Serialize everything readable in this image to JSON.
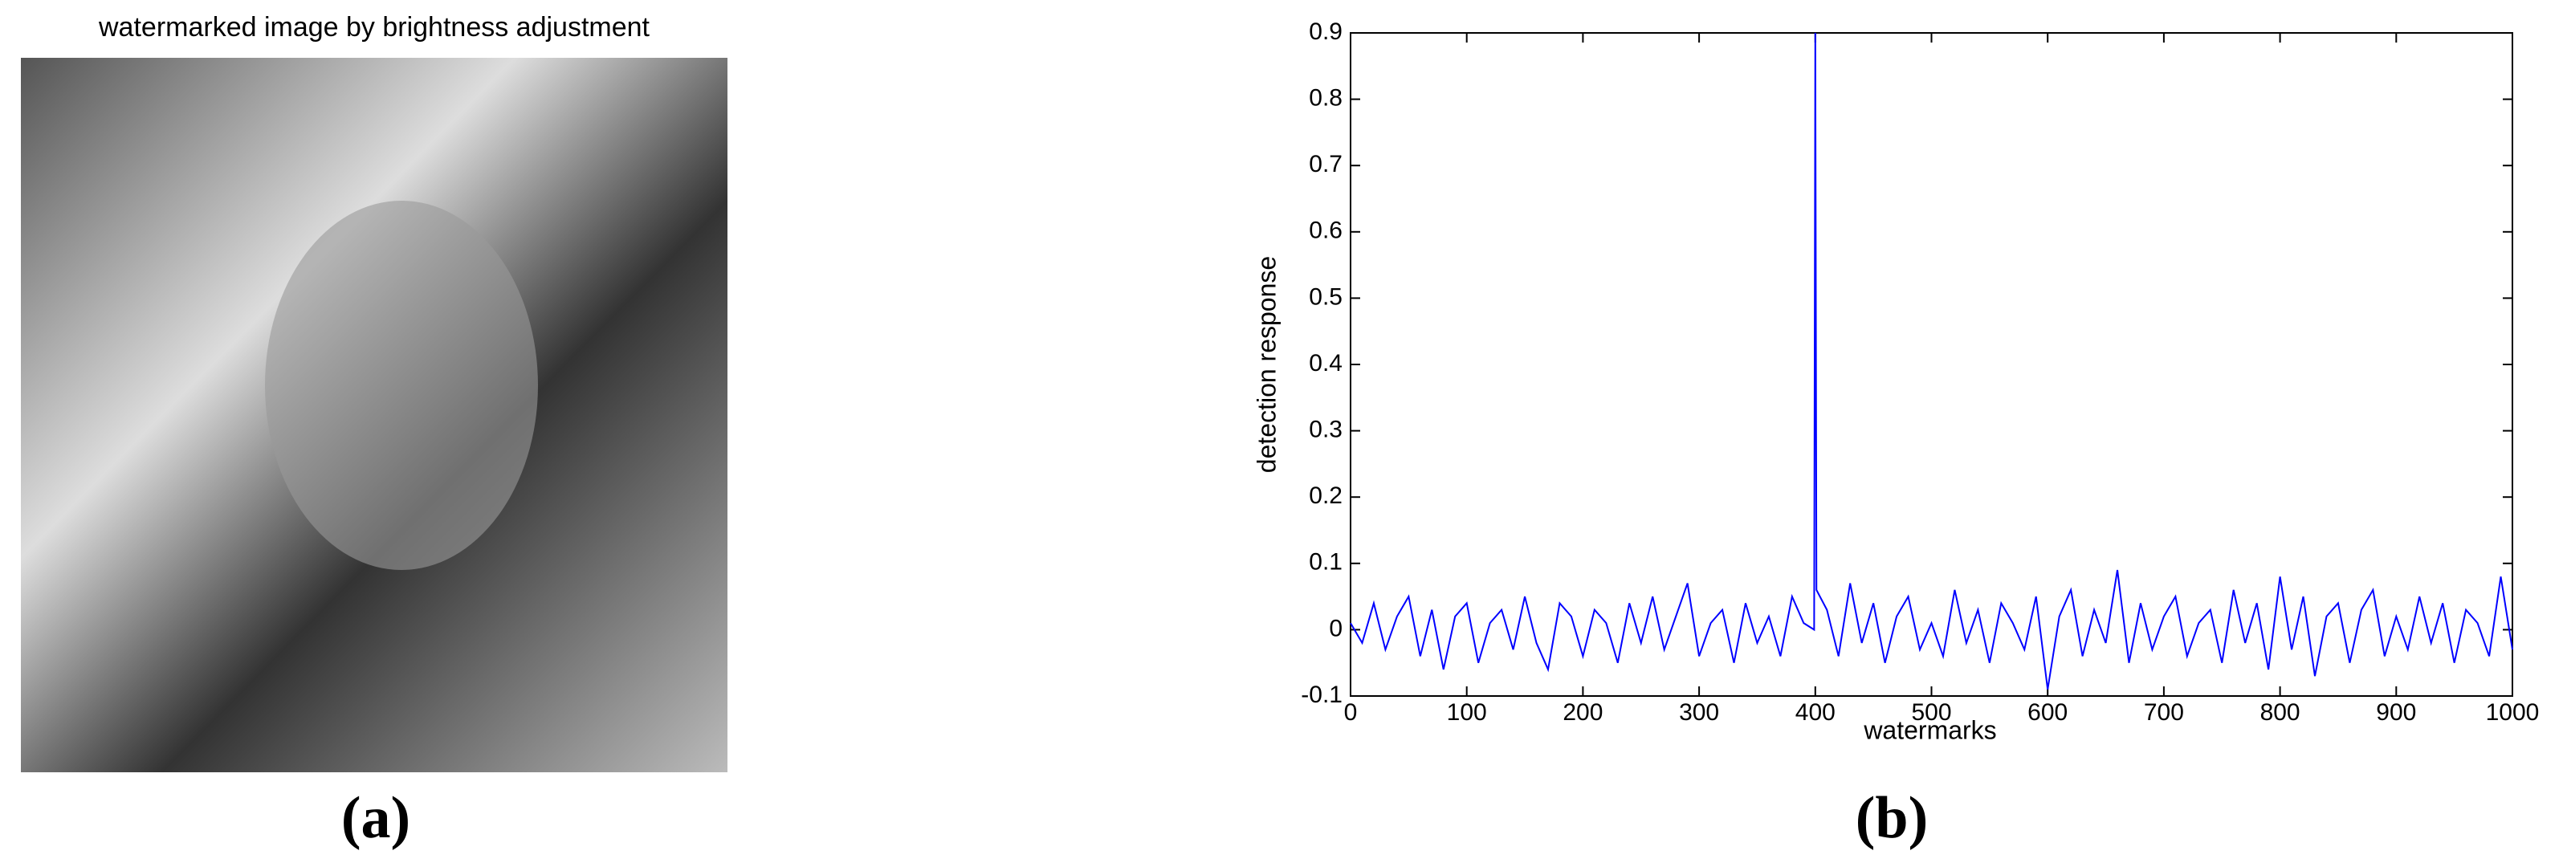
{
  "panel_a": {
    "title": "watermarked image by brightness adjustment",
    "label": "(a)"
  },
  "panel_b_label": "(b)",
  "chart_data": {
    "type": "line",
    "xlabel": "watermarks",
    "ylabel": "detection response",
    "x": [
      0,
      10,
      20,
      30,
      40,
      50,
      60,
      70,
      80,
      90,
      100,
      110,
      120,
      130,
      140,
      150,
      160,
      170,
      180,
      190,
      200,
      210,
      220,
      230,
      240,
      250,
      260,
      270,
      280,
      290,
      300,
      310,
      320,
      330,
      340,
      350,
      360,
      370,
      380,
      390,
      399,
      400,
      401,
      410,
      420,
      430,
      440,
      450,
      460,
      470,
      480,
      490,
      500,
      510,
      520,
      530,
      540,
      550,
      560,
      570,
      580,
      590,
      600,
      610,
      620,
      630,
      640,
      650,
      660,
      670,
      680,
      690,
      700,
      710,
      720,
      730,
      740,
      750,
      760,
      770,
      780,
      790,
      800,
      810,
      820,
      830,
      840,
      850,
      860,
      870,
      880,
      890,
      900,
      910,
      920,
      930,
      940,
      950,
      960,
      970,
      980,
      990,
      1000
    ],
    "series": [
      {
        "color": "#0000ff",
        "values": [
          0.01,
          -0.02,
          0.04,
          -0.03,
          0.02,
          0.05,
          -0.04,
          0.03,
          -0.06,
          0.02,
          0.04,
          -0.05,
          0.01,
          0.03,
          -0.03,
          0.05,
          -0.02,
          -0.06,
          0.04,
          0.02,
          -0.04,
          0.03,
          0.01,
          -0.05,
          0.04,
          -0.02,
          0.05,
          -0.03,
          0.02,
          0.07,
          -0.04,
          0.01,
          0.03,
          -0.05,
          0.04,
          -0.02,
          0.02,
          -0.04,
          0.05,
          0.01,
          0.0,
          0.9,
          0.06,
          0.03,
          -0.04,
          0.07,
          -0.02,
          0.04,
          -0.05,
          0.02,
          0.05,
          -0.03,
          0.01,
          -0.04,
          0.06,
          -0.02,
          0.03,
          -0.05,
          0.04,
          0.01,
          -0.03,
          0.05,
          -0.09,
          0.02,
          0.06,
          -0.04,
          0.03,
          -0.02,
          0.09,
          -0.05,
          0.04,
          -0.03,
          0.02,
          0.05,
          -0.04,
          0.01,
          0.03,
          -0.05,
          0.06,
          -0.02,
          0.04,
          -0.06,
          0.08,
          -0.03,
          0.05,
          -0.07,
          0.02,
          0.04,
          -0.05,
          0.03,
          0.06,
          -0.04,
          0.02,
          -0.03,
          0.05,
          -0.02,
          0.04,
          -0.05,
          0.03,
          0.01,
          -0.04,
          0.08,
          -0.03
        ]
      }
    ],
    "xlim": [
      0,
      1000
    ],
    "ylim": [
      -0.1,
      0.9
    ],
    "xticks": [
      0,
      100,
      200,
      300,
      400,
      500,
      600,
      700,
      800,
      900,
      1000
    ],
    "yticks": [
      -0.1,
      0,
      0.1,
      0.2,
      0.3,
      0.4,
      0.5,
      0.6,
      0.7,
      0.8,
      0.9
    ],
    "grid": false
  }
}
